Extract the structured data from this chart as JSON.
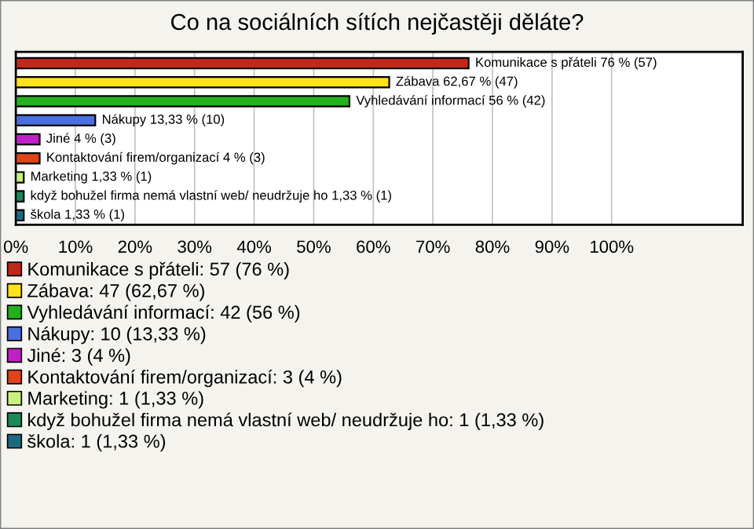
{
  "chart_data": {
    "type": "bar",
    "orientation": "horizontal",
    "title": "Co na sociálních sítích nejčastěji děláte?",
    "categories": [
      null,
      null,
      null,
      null,
      null,
      null,
      null,
      null,
      null
    ],
    "series": [
      {
        "name": "Komunikace s přáteli: 57 (76 %)",
        "color": "#c0281c",
        "values": [
          76,
          null,
          null,
          null,
          null,
          null,
          null,
          null,
          null
        ],
        "value_labels": [
          "Komunikace s přáteli 76 % (57)",
          null,
          null,
          null,
          null,
          null,
          null,
          null,
          null
        ]
      },
      {
        "name": "Zábava: 47 (62,67 %)",
        "color": "#ffe21a",
        "values": [
          null,
          62.67,
          null,
          null,
          null,
          null,
          null,
          null,
          null
        ],
        "value_labels": [
          null,
          "Zábava 62,67 % (47)",
          null,
          null,
          null,
          null,
          null,
          null,
          null
        ]
      },
      {
        "name": "Vyhledávání informací: 42 (56 %)",
        "color": "#22b21e",
        "values": [
          null,
          null,
          56,
          null,
          null,
          null,
          null,
          null,
          null
        ],
        "value_labels": [
          null,
          null,
          "Vyhledávání informací 56 % (42)",
          null,
          null,
          null,
          null,
          null,
          null
        ]
      },
      {
        "name": "Nákupy: 10 (13,33 %)",
        "color": "#4a6fe0",
        "values": [
          null,
          null,
          null,
          13.33,
          null,
          null,
          null,
          null,
          null
        ],
        "value_labels": [
          null,
          null,
          null,
          "Nákupy 13,33 % (10)",
          null,
          null,
          null,
          null,
          null
        ]
      },
      {
        "name": "Jiné: 3 (4 %)",
        "color": "#c020c8",
        "values": [
          null,
          null,
          null,
          null,
          4,
          null,
          null,
          null,
          null
        ],
        "value_labels": [
          null,
          null,
          null,
          null,
          "Jiné 4 % (3)",
          null,
          null,
          null,
          null
        ]
      },
      {
        "name": "Kontaktování firem/organizací: 3 (4 %)",
        "color": "#e04418",
        "values": [
          null,
          null,
          null,
          null,
          null,
          4,
          null,
          null,
          null
        ],
        "value_labels": [
          null,
          null,
          null,
          null,
          null,
          "Kontaktování firem/organizací 4 % (3)",
          null,
          null,
          null
        ]
      },
      {
        "name": "Marketing: 1 (1,33 %)",
        "color": "#c8f080",
        "values": [
          null,
          null,
          null,
          null,
          null,
          null,
          1.33,
          null,
          null
        ],
        "value_labels": [
          null,
          null,
          null,
          null,
          null,
          null,
          "Marketing 1,33 % (1)",
          null,
          null
        ]
      },
      {
        "name": "když bohužel firma nemá vlastní web/ neudržuje ho: 1 (1,33 %)",
        "color": "#1a8a5a",
        "values": [
          null,
          null,
          null,
          null,
          null,
          null,
          null,
          1.33,
          null
        ],
        "value_labels": [
          null,
          null,
          null,
          null,
          null,
          null,
          null,
          "když bohužel firma nemá vlastní web/ neudržuje ho 1,33 % (1)",
          null
        ]
      },
      {
        "name": "škola: 1 (1,33 %)",
        "color": "#1a6a80",
        "values": [
          null,
          null,
          null,
          null,
          null,
          null,
          null,
          null,
          1.33
        ],
        "value_labels": [
          null,
          null,
          null,
          null,
          null,
          null,
          null,
          null,
          "škola 1,33 % (1)"
        ]
      }
    ],
    "xlim": [
      0,
      122
    ],
    "xticks": [
      {
        "value": 0,
        "label": "0%"
      },
      {
        "value": 10,
        "label": "10%"
      },
      {
        "value": 20,
        "label": "20%"
      },
      {
        "value": 30,
        "label": "30%"
      },
      {
        "value": 40,
        "label": "40%"
      },
      {
        "value": 50,
        "label": "50%"
      },
      {
        "value": 60,
        "label": "60%"
      },
      {
        "value": 70,
        "label": "70%"
      },
      {
        "value": 80,
        "label": "80%"
      },
      {
        "value": 90,
        "label": "90%"
      },
      {
        "value": 100,
        "label": "100%"
      }
    ],
    "grid": "x",
    "legend": "bottom"
  }
}
